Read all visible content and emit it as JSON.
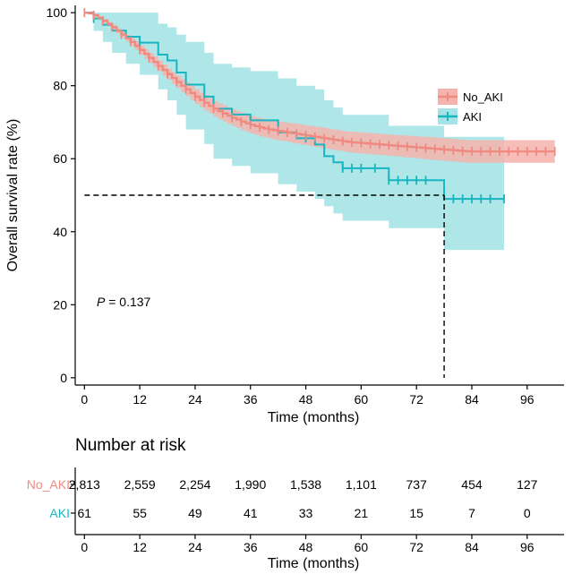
{
  "chart_data": {
    "type": "line",
    "subtype": "kaplan-meier",
    "title": "",
    "xlabel": "Time (months)",
    "ylabel": "Overall survival rate (%)",
    "xlim": [
      -2,
      104
    ],
    "ylim": [
      -2,
      102
    ],
    "x_ticks": [
      0,
      12,
      24,
      36,
      48,
      60,
      72,
      84,
      96
    ],
    "y_ticks": [
      0,
      20,
      40,
      60,
      80,
      100
    ],
    "grid": false,
    "legend_position": "right",
    "annotation": {
      "p_label": "P",
      "p_text": " = 0.137"
    },
    "median_line": {
      "y": 50,
      "x": 78
    },
    "series": [
      {
        "name": "No_AKI",
        "color": "#f08a80",
        "band_color": "#f6b3ad",
        "x": [
          0,
          1,
          2,
          3,
          4,
          5,
          6,
          7,
          8,
          9,
          10,
          11,
          12,
          13,
          14,
          15,
          16,
          17,
          18,
          19,
          20,
          21,
          22,
          23,
          24,
          25,
          26,
          27,
          28,
          29,
          30,
          31,
          32,
          33,
          34,
          35,
          36,
          37,
          38,
          39,
          40,
          41,
          42,
          43,
          44,
          45,
          46,
          47,
          48,
          49,
          50,
          51,
          52,
          53,
          54,
          55,
          56,
          57,
          58,
          59,
          60,
          61,
          62,
          63,
          64,
          65,
          66,
          67,
          68,
          69,
          70,
          71,
          72,
          73,
          74,
          75,
          76,
          77,
          78,
          79,
          80,
          81,
          82,
          83,
          84,
          85,
          86,
          87,
          88,
          89,
          90,
          91,
          92,
          93,
          94,
          95,
          96,
          97,
          98,
          99,
          100,
          101,
          102
        ],
        "values": [
          100,
          99.8,
          99.3,
          98.6,
          97.8,
          96.9,
          96,
          95,
          94,
          93,
          92,
          90.9,
          89.8,
          88.7,
          87.6,
          86.5,
          85.4,
          84.3,
          83.2,
          82.1,
          81,
          80,
          79,
          78,
          77,
          76.1,
          75.3,
          74.5,
          73.7,
          73,
          72.4,
          71.8,
          71.2,
          70.7,
          70.2,
          69.7,
          69.3,
          68.9,
          68.6,
          68.3,
          68,
          67.8,
          67.6,
          67.4,
          67.2,
          67,
          66.8,
          66.6,
          66.4,
          66.2,
          66,
          65.8,
          65.6,
          65.4,
          65.2,
          65,
          64.8,
          64.6,
          64.5,
          64.4,
          64.3,
          64.2,
          64.1,
          64,
          63.9,
          63.8,
          63.7,
          63.6,
          63.5,
          63.4,
          63.3,
          63.2,
          63.1,
          63,
          62.9,
          62.8,
          62.7,
          62.6,
          62.5,
          62.4,
          62.3,
          62.2,
          62.1,
          62,
          62,
          62,
          62,
          62,
          62,
          62,
          62,
          62,
          62,
          62,
          62,
          62,
          62,
          62,
          62,
          62,
          62,
          62,
          62
        ],
        "lower": [
          100,
          99.6,
          99,
          98.2,
          97.3,
          96.3,
          95.3,
          94.3,
          93.2,
          92.1,
          91,
          89.8,
          88.6,
          87.4,
          86.2,
          85,
          83.9,
          82.8,
          81.7,
          80.5,
          79.3,
          78.2,
          77.1,
          76,
          75,
          74.1,
          73.2,
          72.4,
          71.6,
          70.8,
          70.2,
          69.5,
          68.9,
          68.4,
          67.8,
          67.3,
          66.9,
          66.5,
          66.1,
          65.8,
          65.5,
          65.2,
          65,
          64.8,
          64.6,
          64.3,
          64.1,
          63.9,
          63.7,
          63.4,
          63.2,
          63,
          62.8,
          62.6,
          62.4,
          62.2,
          62,
          61.8,
          61.6,
          61.5,
          61.4,
          61.3,
          61.2,
          61.1,
          61,
          60.9,
          60.8,
          60.7,
          60.6,
          60.4,
          60.3,
          60.2,
          60.1,
          60,
          59.8,
          59.7,
          59.6,
          59.5,
          59.4,
          59.3,
          59.2,
          59.1,
          59,
          58.9,
          58.9,
          58.9,
          58.9,
          58.9,
          58.9,
          58.9,
          58.9,
          58.9,
          58.9,
          58.9,
          58.9,
          58.9,
          58.9,
          58.9,
          58.9,
          58.9,
          58.9,
          58.9,
          58.9
        ],
        "upper": [
          100,
          100,
          99.6,
          99,
          98.3,
          97.5,
          96.7,
          95.7,
          94.8,
          93.9,
          93,
          92,
          91,
          90,
          89,
          88,
          86.9,
          85.8,
          84.7,
          83.7,
          82.7,
          81.8,
          80.9,
          80,
          79,
          78.1,
          77.4,
          76.6,
          75.8,
          75.2,
          74.6,
          74.1,
          73.5,
          73,
          72.6,
          72.1,
          71.7,
          71.3,
          71.1,
          70.8,
          70.5,
          70.4,
          70.2,
          70,
          69.8,
          69.7,
          69.5,
          69.3,
          69.1,
          69,
          68.8,
          68.6,
          68.4,
          68.2,
          68,
          67.8,
          67.6,
          67.4,
          67.4,
          67.3,
          67.2,
          67.1,
          67,
          66.9,
          66.8,
          66.7,
          66.6,
          66.5,
          66.4,
          66.4,
          66.3,
          66.2,
          66.1,
          66,
          66,
          65.9,
          65.8,
          65.7,
          65.6,
          65.5,
          65.4,
          65.3,
          65.2,
          65.1,
          65.1,
          65.1,
          65.1,
          65.1,
          65.1,
          65.1,
          65.1,
          65.1,
          65.1,
          65.1,
          65.1,
          65.1,
          65.1,
          65.1,
          65.1,
          65.1,
          65.1,
          65.1,
          65.1
        ],
        "censor_x": [
          0,
          2,
          4,
          6,
          8,
          10,
          12,
          14,
          16,
          18,
          20,
          22,
          24,
          26,
          28,
          30,
          32,
          34,
          36,
          38,
          40,
          42,
          44,
          46,
          48,
          50,
          52,
          54,
          56,
          58,
          60,
          62,
          64,
          66,
          68,
          70,
          72,
          74,
          76,
          78,
          80,
          82,
          84,
          86,
          88,
          90,
          92,
          94,
          96,
          98,
          100,
          102
        ]
      },
      {
        "name": "AKI",
        "color": "#17b6c0",
        "band_color": "#a6e3e6",
        "x": [
          0,
          2,
          4,
          6,
          9,
          12,
          16,
          18,
          20,
          22,
          26,
          28,
          32,
          36,
          42,
          46,
          50,
          52,
          54,
          56,
          60,
          62,
          64,
          66,
          70,
          72,
          76,
          78,
          80,
          84,
          88,
          91
        ],
        "values": [
          100,
          98.4,
          96.7,
          95.1,
          93.4,
          91.8,
          88.5,
          86.9,
          83.6,
          80.3,
          77,
          73.7,
          72.1,
          70.5,
          67.2,
          65.6,
          63.9,
          60.7,
          59,
          57.4,
          57.4,
          57.4,
          57.4,
          54.1,
          54.1,
          54.1,
          54.1,
          49,
          49,
          49,
          49,
          49
        ],
        "lower": [
          100,
          95,
          92,
          89,
          86,
          83,
          79,
          76,
          72,
          68,
          64,
          60,
          58,
          56,
          53,
          51,
          49,
          47,
          45,
          43,
          43,
          43,
          43,
          41,
          41,
          41,
          41,
          35,
          35,
          35,
          35,
          35
        ],
        "upper": [
          100,
          100,
          100,
          100,
          100,
          100,
          97,
          96,
          94,
          92,
          89,
          86,
          85,
          84,
          82,
          80,
          79,
          76,
          74,
          72,
          72,
          72,
          72,
          69,
          69,
          69,
          69,
          66,
          66,
          66,
          66,
          66
        ],
        "censor_x": [
          2,
          12,
          26,
          32,
          36,
          48,
          56,
          58,
          60,
          63,
          66,
          68,
          70,
          72,
          74,
          80,
          82,
          84,
          86,
          88,
          91
        ]
      }
    ],
    "risk_table": {
      "title": "Number at risk",
      "times": [
        0,
        12,
        24,
        36,
        48,
        60,
        72,
        84,
        96
      ],
      "rows": [
        {
          "label": "No_AKI",
          "color": "#f08a80",
          "counts": [
            "2,813",
            "2,559",
            "2,254",
            "1,990",
            "1,538",
            "1,101",
            "737",
            "454",
            "127"
          ]
        },
        {
          "label": "AKI",
          "color": "#17b6c0",
          "counts": [
            "61",
            "55",
            "49",
            "41",
            "33",
            "21",
            "15",
            "7",
            "0"
          ]
        }
      ],
      "xlabel": "Time (months)"
    }
  }
}
